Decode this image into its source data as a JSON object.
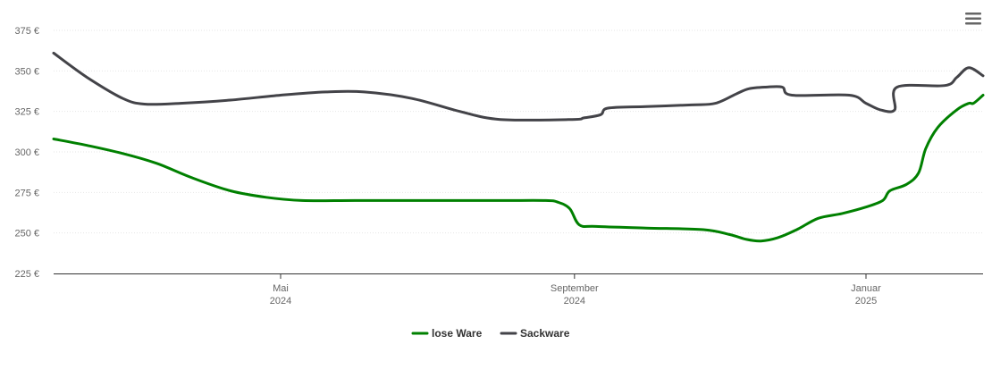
{
  "chart_data": {
    "type": "line",
    "title": "",
    "xlabel": "",
    "ylabel": "",
    "ylim": [
      225,
      375
    ],
    "yticks": [
      {
        "value": 225,
        "label": "225 €"
      },
      {
        "value": 250,
        "label": "250 €"
      },
      {
        "value": 275,
        "label": "275 €"
      },
      {
        "value": 300,
        "label": "300 €"
      },
      {
        "value": 325,
        "label": "325 €"
      },
      {
        "value": 350,
        "label": "350 €"
      },
      {
        "value": 375,
        "label": "375 €"
      }
    ],
    "xlim": [
      "2024-01-27",
      "2025-02-19"
    ],
    "xticks": [
      {
        "date": "2024-05-01",
        "month": "Mai",
        "year": "2024"
      },
      {
        "date": "2024-09-01",
        "month": "September",
        "year": "2024"
      },
      {
        "date": "2025-01-01",
        "month": "Januar",
        "year": "2025"
      }
    ],
    "grid": true,
    "legend": "bottom",
    "series": [
      {
        "name": "lose Ware",
        "color": "#008000",
        "points": [
          [
            "2024-01-27",
            308
          ],
          [
            "2024-02-10",
            304
          ],
          [
            "2024-02-25",
            299
          ],
          [
            "2024-03-10",
            293
          ],
          [
            "2024-03-25",
            284
          ],
          [
            "2024-04-10",
            276
          ],
          [
            "2024-04-25",
            272
          ],
          [
            "2024-05-10",
            270
          ],
          [
            "2024-06-01",
            270
          ],
          [
            "2024-07-01",
            270
          ],
          [
            "2024-08-01",
            270
          ],
          [
            "2024-08-20",
            270
          ],
          [
            "2024-08-25",
            269
          ],
          [
            "2024-08-30",
            265
          ],
          [
            "2024-09-03",
            255
          ],
          [
            "2024-09-10",
            254
          ],
          [
            "2024-10-01",
            253
          ],
          [
            "2024-10-25",
            252
          ],
          [
            "2024-11-05",
            249
          ],
          [
            "2024-11-12",
            246
          ],
          [
            "2024-11-18",
            245
          ],
          [
            "2024-11-25",
            247
          ],
          [
            "2024-12-03",
            252
          ],
          [
            "2024-12-12",
            259
          ],
          [
            "2024-12-22",
            262
          ],
          [
            "2025-01-01",
            266
          ],
          [
            "2025-01-08",
            270
          ],
          [
            "2025-01-11",
            276
          ],
          [
            "2025-01-18",
            280
          ],
          [
            "2025-01-23",
            287
          ],
          [
            "2025-01-26",
            302
          ],
          [
            "2025-01-31",
            315
          ],
          [
            "2025-02-08",
            326
          ],
          [
            "2025-02-13",
            330
          ],
          [
            "2025-02-15",
            330
          ],
          [
            "2025-02-19",
            335
          ]
        ]
      },
      {
        "name": "Sackware",
        "color": "#434348",
        "points": [
          [
            "2024-01-27",
            361
          ],
          [
            "2024-02-10",
            346
          ],
          [
            "2024-02-25",
            333
          ],
          [
            "2024-03-05",
            329.5
          ],
          [
            "2024-03-20",
            330
          ],
          [
            "2024-04-10",
            332
          ],
          [
            "2024-05-01",
            335
          ],
          [
            "2024-05-20",
            337
          ],
          [
            "2024-06-05",
            337
          ],
          [
            "2024-06-25",
            333
          ],
          [
            "2024-07-15",
            325
          ],
          [
            "2024-08-01",
            320
          ],
          [
            "2024-08-31",
            320
          ],
          [
            "2024-09-05",
            321
          ],
          [
            "2024-09-12",
            323
          ],
          [
            "2024-09-15",
            327
          ],
          [
            "2024-10-01",
            328
          ],
          [
            "2024-10-20",
            329
          ],
          [
            "2024-10-30",
            330
          ],
          [
            "2024-11-08",
            336
          ],
          [
            "2024-11-13",
            339
          ],
          [
            "2024-11-20",
            340
          ],
          [
            "2024-11-27",
            340
          ],
          [
            "2024-12-01",
            335
          ],
          [
            "2024-12-25",
            335
          ],
          [
            "2025-01-01",
            330
          ],
          [
            "2025-01-07",
            326
          ],
          [
            "2025-01-13",
            326
          ],
          [
            "2025-01-14",
            340
          ],
          [
            "2025-02-03",
            341
          ],
          [
            "2025-02-08",
            346
          ],
          [
            "2025-02-13",
            352
          ],
          [
            "2025-02-19",
            347
          ]
        ]
      }
    ]
  },
  "menu": {
    "icon": "hamburger-menu-icon"
  }
}
